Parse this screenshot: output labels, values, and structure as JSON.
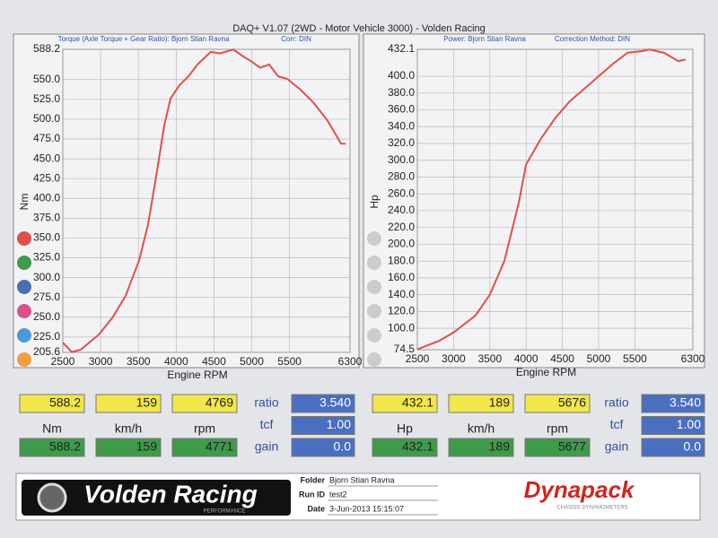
{
  "header": {
    "title": "DAQ+ V1.07 (2WD - Motor Vehicle 3000) - Volden Racing"
  },
  "chart_data": [
    {
      "type": "line",
      "subtitle": "Torque (Axle Torque + Gear Ratio): Bjorn Stian Ravna",
      "note": "Corr: DIN",
      "y_label": "Nm",
      "x_label": "Engine RPM",
      "color": "#e0504a",
      "grid": true,
      "x": [
        2500,
        2619,
        2737,
        2975,
        3153,
        3331,
        3510,
        3628,
        3747,
        3842,
        3925,
        4044,
        4162,
        4281,
        4459,
        4578,
        4756,
        4875,
        4994,
        5112,
        5231,
        5350,
        5469,
        5647,
        5825,
        6003,
        6181,
        6241
      ],
      "values": [
        218,
        206,
        209,
        228,
        249,
        277,
        322,
        367,
        435,
        492,
        526,
        543,
        554,
        569,
        585,
        583,
        588,
        580,
        573,
        565,
        569,
        554,
        551,
        537,
        520,
        498,
        469,
        469
      ],
      "xlim": [
        2500,
        6300
      ],
      "ylim": [
        205.6,
        588.2
      ],
      "xticks": [
        2500,
        3000,
        3500,
        4000,
        4500,
        5000,
        5500,
        6300
      ],
      "yticks": [
        588.2,
        {
          "value": 550,
          "label": "550.0"
        },
        {
          "value": 525,
          "label": "525.0"
        },
        {
          "value": 500,
          "label": "500.0"
        },
        {
          "value": 475,
          "label": "475.0"
        },
        {
          "value": 450,
          "label": "450.0"
        },
        {
          "value": 425,
          "label": "425.0"
        },
        {
          "value": 400,
          "label": "400.0"
        },
        {
          "value": 375,
          "label": "375.0"
        },
        {
          "value": 350,
          "label": "350.0"
        },
        {
          "value": 325,
          "label": "325.0"
        },
        {
          "value": 300,
          "label": "300.0"
        },
        {
          "value": 275,
          "label": "275.0"
        },
        {
          "value": 250,
          "label": "250.0"
        },
        {
          "value": 225,
          "label": "225.0"
        },
        205.6
      ]
    },
    {
      "type": "line",
      "subtitle": "Power: Bjorn Stian Ravna",
      "note": "Correction Method: DIN",
      "y_label": "Hp",
      "x_label": "Engine RPM",
      "color": "#e0504a",
      "grid": true,
      "x": [
        2500,
        2800,
        3000,
        3300,
        3500,
        3700,
        3900,
        4000,
        4200,
        4400,
        4600,
        4800,
        5000,
        5200,
        5400,
        5600,
        5700,
        5900,
        6100,
        6200
      ],
      "values": [
        75,
        85,
        95,
        115,
        140,
        180,
        250,
        295,
        325,
        350,
        370,
        385,
        400,
        415,
        428,
        430,
        432,
        428,
        418,
        420
      ],
      "xlim": [
        2500,
        6300
      ],
      "ylim": [
        74.5,
        432.1
      ],
      "xticks": [
        2500,
        3000,
        3500,
        4000,
        4500,
        5000,
        5500,
        6300
      ],
      "yticks": [
        432.1,
        {
          "value": 400,
          "label": "400.0"
        },
        {
          "value": 380,
          "label": "380.0"
        },
        {
          "value": 360,
          "label": "360.0"
        },
        {
          "value": 340,
          "label": "340.0"
        },
        {
          "value": 320,
          "label": "320.0"
        },
        {
          "value": 300,
          "label": "300.0"
        },
        {
          "value": 280,
          "label": "280.0"
        },
        {
          "value": 260,
          "label": "260.0"
        },
        {
          "value": 240,
          "label": "240.0"
        },
        {
          "value": 220,
          "label": "220.0"
        },
        {
          "value": 200,
          "label": "200.0"
        },
        {
          "value": 180,
          "label": "180.0"
        },
        {
          "value": 160,
          "label": "160.0"
        },
        {
          "value": 140,
          "label": "140.0"
        },
        {
          "value": 120,
          "label": "120.0"
        },
        {
          "value": 100,
          "label": "100.0"
        },
        74.5
      ]
    }
  ],
  "readouts": [
    {
      "top": [
        "588.2",
        "159",
        "4769"
      ],
      "units": [
        "Nm",
        "km/h",
        "rpm"
      ],
      "bottom": [
        "588.2",
        "159",
        "4771"
      ],
      "params": [
        [
          "ratio",
          "3.540"
        ],
        [
          "tcf",
          "1.00"
        ],
        [
          "gain",
          "0.0"
        ]
      ]
    },
    {
      "top": [
        "432.1",
        "189",
        "5676"
      ],
      "units": [
        "Hp",
        "km/h",
        "rpm"
      ],
      "bottom": [
        "432.1",
        "189",
        "5677"
      ],
      "params": [
        [
          "ratio",
          "3.540"
        ],
        [
          "tcf",
          "1.00"
        ],
        [
          "gain",
          "0.0"
        ]
      ]
    }
  ],
  "footer": {
    "logo": "Volden Racing",
    "logo_sub": "PERFORMANCE",
    "fields": [
      [
        "Folder",
        "Bjorn Stian Ravna"
      ],
      [
        "Run ID",
        "test2"
      ],
      [
        "Date",
        "3-Jun-2013 15:15:07"
      ]
    ],
    "brand": "Dynapack",
    "brand_sub": "CHASSIS DYNAMOMETERS"
  }
}
